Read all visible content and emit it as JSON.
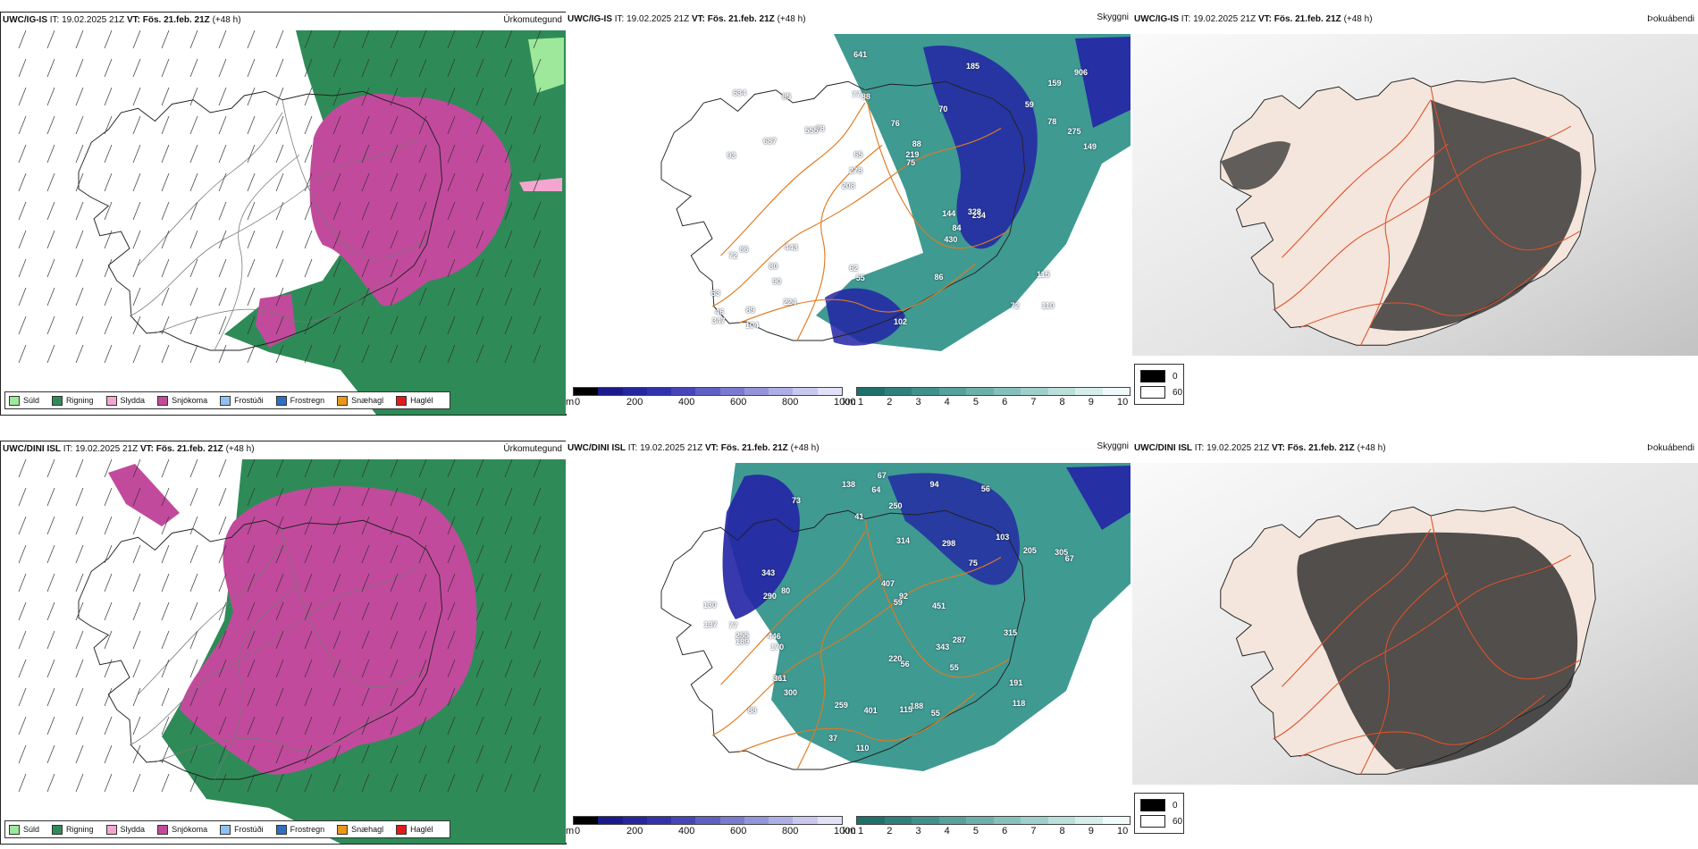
{
  "rows": [
    {
      "model": "UWC/IG-IS",
      "it_label": "IT: 19.02.2025 21Z",
      "vt_label": "VT: Fös. 21.feb. 21Z",
      "lead": "(+48 h)",
      "cloud_labels": [
        "110",
        "93",
        "159",
        "208",
        "70",
        "89",
        "77",
        "76",
        "86",
        "78",
        "63",
        "90",
        "88",
        "88",
        "234",
        "634",
        "641",
        "149",
        "144",
        "78",
        "278",
        "62",
        "65",
        "85",
        "185",
        "443",
        "72",
        "115",
        "328",
        "102",
        "555",
        "687",
        "430",
        "224",
        "275",
        "219",
        "46",
        "55",
        "75",
        "72",
        "59",
        "906",
        "84",
        "86",
        "80",
        "104",
        "347"
      ]
    },
    {
      "model": "UWC/DINI ISL",
      "it_label": "IT: 19.02.2025 21Z",
      "vt_label": "VT: Fös. 21.feb. 21Z",
      "lead": "(+48 h)",
      "cloud_labels": [
        "88",
        "56",
        "73",
        "103",
        "56",
        "80",
        "170",
        "211",
        "205",
        "75",
        "77",
        "67",
        "55",
        "59",
        "110",
        "138",
        "118",
        "130",
        "36",
        "37",
        "55",
        "64",
        "41",
        "92",
        "407",
        "259",
        "255",
        "94",
        "314",
        "287",
        "343",
        "300",
        "188",
        "220",
        "191",
        "189",
        "305",
        "451",
        "298",
        "315",
        "67",
        "250",
        "401",
        "446",
        "137",
        "290",
        "343",
        "115"
      ]
    }
  ],
  "panel_titles": {
    "precip": "Úrkomutegund",
    "cloud": "Skyggni",
    "fog": "Þokuábendi"
  },
  "precip_legend": [
    {
      "label": "Súld",
      "color": "#9de89a"
    },
    {
      "label": "Rigning",
      "color": "#2e8b57"
    },
    {
      "label": "Slydda",
      "color": "#f4a6d0"
    },
    {
      "label": "Snjókoma",
      "color": "#c24a9c"
    },
    {
      "label": "Frostúði",
      "color": "#8fc1ee"
    },
    {
      "label": "Frostregn",
      "color": "#2f6fc1"
    },
    {
      "label": "Snæhagl",
      "color": "#e9971a"
    },
    {
      "label": "Haglél",
      "color": "#e31a1c"
    }
  ],
  "cloud_base_scale": {
    "unit": "m",
    "ticks": [
      "0",
      "200",
      "400",
      "600",
      "800",
      "1000"
    ],
    "colors": [
      "#000000",
      "#1a1a8c",
      "#26269e",
      "#3232ad",
      "#4646b8",
      "#5f5fc4",
      "#7a7ad0",
      "#9494db",
      "#aeaee6",
      "#c8c8ef",
      "#e0e0f7"
    ]
  },
  "visibility_scale": {
    "unit": "km",
    "ticks": [
      "1",
      "2",
      "3",
      "4",
      "5",
      "6",
      "7",
      "8",
      "9",
      "10"
    ],
    "colors": [
      "#1f6f6b",
      "#2f807c",
      "#40918c",
      "#56a19c",
      "#6cb0ab",
      "#85c0bb",
      "#9fcfca",
      "#bbdfdb",
      "#d6eeeb",
      "#f0fafa"
    ]
  },
  "fog_scale": {
    "min_label": "0",
    "max_label": "60",
    "min_color": "#000000",
    "max_color": "#ffffff"
  },
  "map_colors": {
    "rain": "#2e8b57",
    "snow": "#c24a9c",
    "sleet": "#f4a6d0",
    "drizzle": "#9de89a",
    "ceiling": "#2323a5",
    "visibility": "#3f9a92",
    "roads": "#e07a20",
    "fog_land": "#f4e6dc",
    "fog_dark": "#222222"
  }
}
